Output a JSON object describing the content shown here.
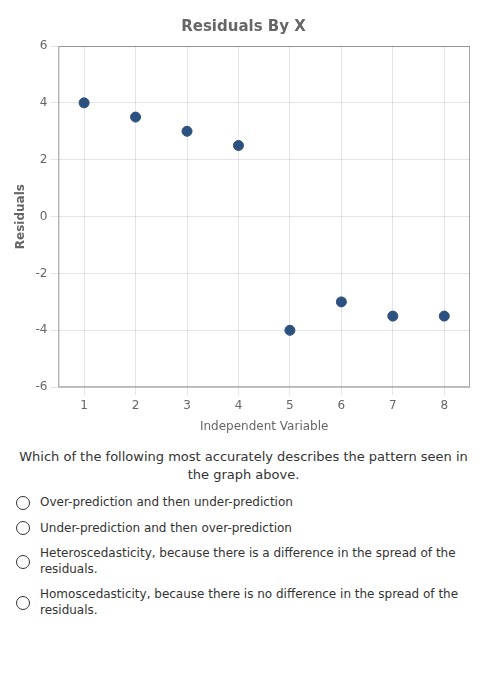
{
  "chart_data": {
    "type": "scatter",
    "title": "Residuals By X",
    "x_label": "Independent Variable",
    "y_label": "Residuals",
    "x": [
      1,
      2,
      3,
      4,
      5,
      6,
      7,
      8
    ],
    "values": [
      4.0,
      3.5,
      3.0,
      2.5,
      -4.0,
      -3.0,
      -3.5,
      -3.5
    ],
    "color": "#2c5080",
    "xlim": [
      0.5,
      8.5
    ],
    "xticks": [
      1,
      2,
      3,
      4,
      5,
      6,
      7,
      8
    ],
    "ylim": [
      -6,
      6
    ],
    "yticks": [
      -6,
      -4,
      -2,
      0,
      2,
      4,
      6
    ],
    "grid": true,
    "annotations": [
      "Which of the following most accurately describes the pattern seen in the graph above.",
      "Over-prediction and then under-prediction",
      "Under-prediction and then over-prediction",
      "Heteroscedasticity, because there is a difference in the spread of the residuals.",
      "Homoscedasticity, because there is no difference in the spread of the residuals."
    ]
  }
}
